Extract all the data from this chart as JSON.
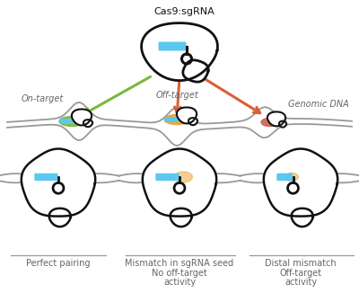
{
  "background_color": "#ffffff",
  "cas9_label": "Cas9:sgRNA",
  "on_target_label": "On-target",
  "off_target_label": "Off-target",
  "genomic_dna_label": "Genomic DNA",
  "label1": "Perfect pairing",
  "label2": "Mismatch in sgRNA seed",
  "label2b": "No off-target\nactivity",
  "label3": "Distal mismatch",
  "label3b": "Off-target\nactivity",
  "cyan_color": "#5bc8ef",
  "green_color": "#7ab840",
  "orange_color": "#e8a030",
  "red_color": "#d95f38",
  "salmon_color": "#cc6050",
  "gray_color": "#999999",
  "black": "#111111",
  "text_color": "#666666",
  "lw_thick": 2.0,
  "lw_thin": 1.3
}
